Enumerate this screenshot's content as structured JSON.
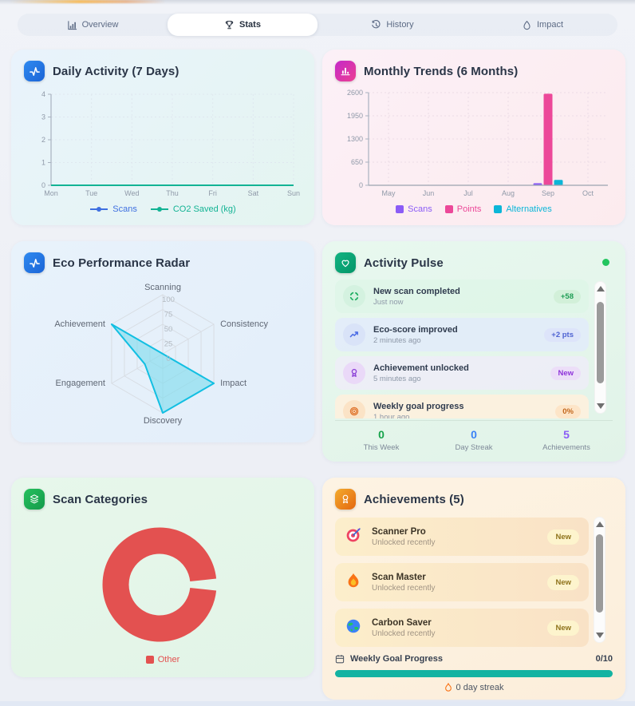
{
  "nav": {
    "tabs": [
      {
        "label": "Overview",
        "icon": "bar-chart-icon",
        "active": false
      },
      {
        "label": "Stats",
        "icon": "trophy-icon",
        "active": true
      },
      {
        "label": "History",
        "icon": "history-icon",
        "active": false
      },
      {
        "label": "Impact",
        "icon": "droplet-icon",
        "active": false
      }
    ]
  },
  "cards": {
    "daily_activity": {
      "title": "Daily Activity (7 Days)",
      "chart_data": {
        "type": "line",
        "categories": [
          "Mon",
          "Tue",
          "Wed",
          "Thu",
          "Fri",
          "Sat",
          "Sun"
        ],
        "series": [
          {
            "name": "Scans",
            "color": "#3e6fe0",
            "values": [
              0,
              0,
              0,
              0,
              0,
              0,
              0
            ]
          },
          {
            "name": "CO2 Saved (kg)",
            "color": "#13b394",
            "values": [
              0,
              0,
              0,
              0,
              0,
              0,
              0
            ]
          }
        ],
        "ylim": [
          0,
          4
        ],
        "yticks": [
          4,
          3,
          2,
          1,
          0
        ],
        "grid": true,
        "legend_position": "bottom"
      }
    },
    "monthly_trends": {
      "title": "Monthly Trends (6 Months)",
      "chart_data": {
        "type": "bar",
        "categories": [
          "May",
          "Jun",
          "Jul",
          "Aug",
          "Sep",
          "Oct"
        ],
        "series": [
          {
            "name": "Scans",
            "color": "#8b5cf6",
            "values": [
              0,
              0,
              0,
              0,
              60,
              0
            ]
          },
          {
            "name": "Points",
            "color": "#ec4899",
            "values": [
              0,
              0,
              0,
              0,
              2570,
              0
            ]
          },
          {
            "name": "Alternatives",
            "color": "#0cb6d8",
            "values": [
              0,
              0,
              0,
              0,
              150,
              0
            ]
          }
        ],
        "ylim": [
          0,
          2600
        ],
        "yticks": [
          2600,
          1950,
          1300,
          650,
          0
        ],
        "grid": true,
        "legend_position": "bottom"
      }
    },
    "eco_radar": {
      "title": "Eco Performance Radar",
      "chart_data": {
        "type": "radar",
        "axes": [
          "Scanning",
          "Consistency",
          "Impact",
          "Discovery",
          "Engagement",
          "Achievement"
        ],
        "values": [
          0,
          0,
          100,
          100,
          35,
          100
        ],
        "max": 100,
        "ring_ticks": [
          100,
          75,
          50,
          25,
          0
        ],
        "fill": "#7edcee",
        "stroke": "#12bfe2"
      }
    },
    "activity_pulse": {
      "title": "Activity Pulse",
      "live_dot_color": "#22c55e",
      "items": [
        {
          "icon": "scan-frame-icon",
          "title": "New scan completed",
          "time": "Just now",
          "badge": "+58"
        },
        {
          "icon": "trend-up-icon",
          "title": "Eco-score improved",
          "time": "2 minutes ago",
          "badge": "+2 pts"
        },
        {
          "icon": "medal-icon",
          "title": "Achievement unlocked",
          "time": "5 minutes ago",
          "badge": "New"
        },
        {
          "icon": "target-icon",
          "title": "Weekly goal progress",
          "time": "1 hour ago",
          "badge": "0%"
        }
      ],
      "stats": [
        {
          "value": "0",
          "label": "This Week",
          "color": "#16a34a"
        },
        {
          "value": "0",
          "label": "Day Streak",
          "color": "#3b82f6"
        },
        {
          "value": "5",
          "label": "Achievements",
          "color": "#8b5cf6"
        }
      ]
    },
    "scan_categories": {
      "title": "Scan Categories",
      "chart_data": {
        "type": "pie",
        "donut": true,
        "labels": [
          "Other"
        ],
        "values": [
          100
        ],
        "colors": [
          "#e35150"
        ],
        "gap_degrees": 12,
        "legend_position": "bottom"
      }
    },
    "achievements": {
      "title": "Achievements (5)",
      "items": [
        {
          "icon": "dart-target-icon",
          "title": "Scanner Pro",
          "subtitle": "Unlocked recently",
          "badge": "New"
        },
        {
          "icon": "flame-icon",
          "title": "Scan Master",
          "subtitle": "Unlocked recently",
          "badge": "New"
        },
        {
          "icon": "globe-icon",
          "title": "Carbon Saver",
          "subtitle": "Unlocked recently",
          "badge": "New"
        }
      ],
      "goal": {
        "label": "Weekly Goal Progress",
        "value": "0/10",
        "bar_color": "#13b3a2"
      },
      "streak": {
        "label": "0 day streak"
      }
    }
  }
}
